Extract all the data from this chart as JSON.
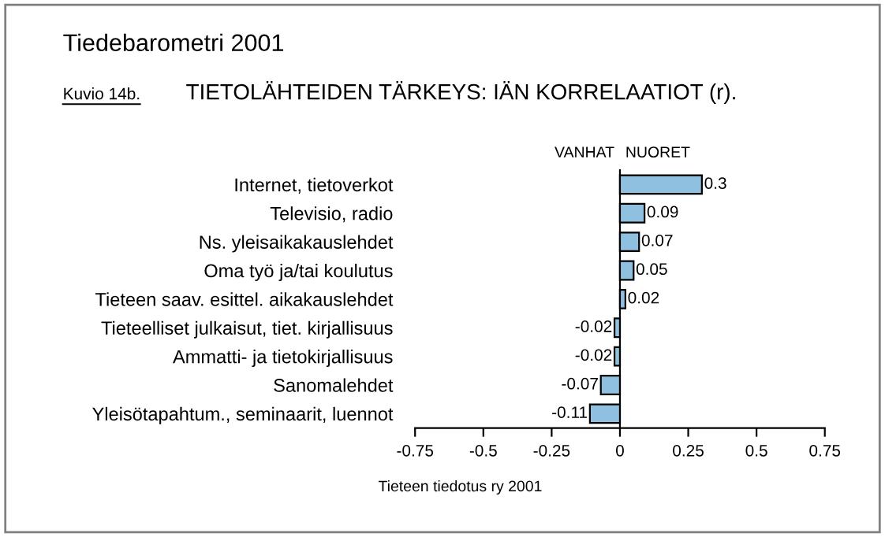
{
  "chart_data": {
    "type": "bar",
    "orientation": "horizontal",
    "title": "TIETOLÄHTEIDEN TÄRKEYS: IÄN KORRELAATIOT (r).",
    "subtitle": "Tiedebarometri 2001",
    "annotations": [
      "Kuvio 14b.",
      "VANHAT",
      "NUORET",
      "Tieteen tiedotus ry 2001"
    ],
    "categories": [
      "Internet, tietoverkot",
      "Televisio, radio",
      "Ns. yleisaikakauslehdet",
      "Oma työ ja/tai koulutus",
      "Tieteen saav. esittel. aikakauslehdet",
      "Tieteelliset julkaisut, tiet. kirjallisuus",
      "Ammatti- ja tietokirjallisuus",
      "Sanomalehdet",
      "Yleisötapahtum., seminaarit, luennot"
    ],
    "values": [
      0.3,
      0.09,
      0.07,
      0.05,
      0.02,
      -0.02,
      -0.02,
      -0.07,
      -0.11
    ],
    "color": "#8fc0e0",
    "data_labels": true,
    "xlim": [
      -0.75,
      0.75
    ],
    "xticks": [
      {
        "value": -0.75,
        "label": "-0.75"
      },
      {
        "value": -0.5,
        "label": "-0.5"
      },
      {
        "value": -0.25,
        "label": "-0.25"
      },
      0,
      0.25,
      0.5,
      0.75
    ],
    "legend": false
  }
}
